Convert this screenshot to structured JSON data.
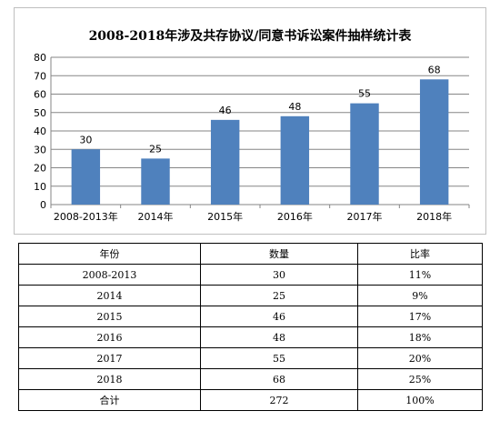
{
  "chart_data": {
    "type": "bar",
    "title": "2008-2018年涉及共存协议/同意书诉讼案件抽样统计表",
    "categories": [
      "2008-2013年",
      "2014年",
      "2015年",
      "2016年",
      "2017年",
      "2018年"
    ],
    "values": [
      30,
      25,
      46,
      48,
      55,
      68
    ],
    "xlabel": "",
    "ylabel": "",
    "ylim": [
      0,
      80
    ],
    "yticks": [
      0,
      10,
      20,
      30,
      40,
      50,
      60,
      70,
      80
    ],
    "grid": true,
    "legend": "none",
    "bar_color": "#4f81bd",
    "grid_color": "#868686"
  },
  "table": {
    "headers": [
      "年份",
      "数量",
      "比率"
    ],
    "rows": [
      [
        "2008-2013",
        "30",
        "11%"
      ],
      [
        "2014",
        "25",
        "9%"
      ],
      [
        "2015",
        "46",
        "17%"
      ],
      [
        "2016",
        "48",
        "18%"
      ],
      [
        "2017",
        "55",
        "20%"
      ],
      [
        "2018",
        "68",
        "25%"
      ],
      [
        "合计",
        "272",
        "100%"
      ]
    ]
  }
}
